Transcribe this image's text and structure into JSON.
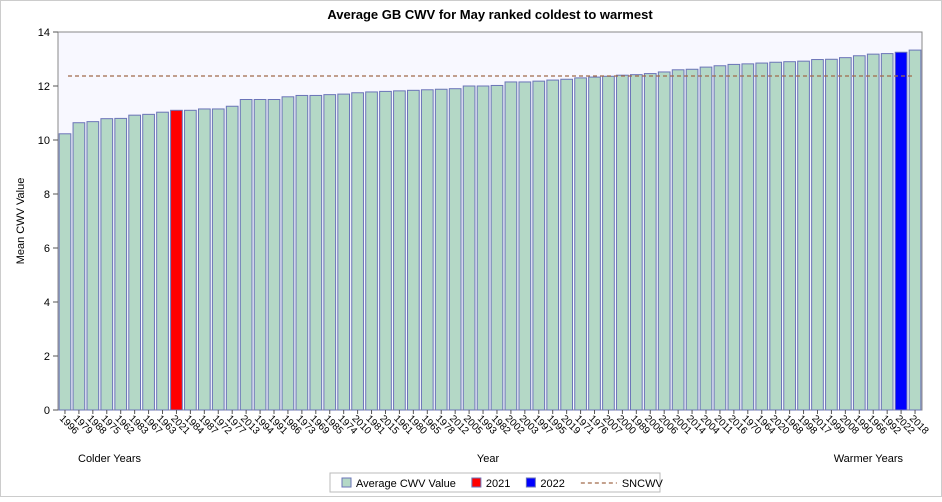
{
  "chart_data": {
    "type": "bar",
    "title": "Average GB CWV for May ranked coldest to warmest",
    "y_label": "Mean CWV Value",
    "x_label": "Year",
    "x_left_note": "Colder Years",
    "x_right_note": "Warmer Years",
    "categories": [
      "1996",
      "1979",
      "1988",
      "1975",
      "1962",
      "1983",
      "1967",
      "1963",
      "2021",
      "1984",
      "1987",
      "1972",
      "1977",
      "2013",
      "1994",
      "1991",
      "1986",
      "1973",
      "1969",
      "1985",
      "1974",
      "2010",
      "1981",
      "2015",
      "1961",
      "1980",
      "1965",
      "1978",
      "2012",
      "2005",
      "1993",
      "1982",
      "2002",
      "2003",
      "1997",
      "1995",
      "2019",
      "1971",
      "1976",
      "2007",
      "2000",
      "1989",
      "2009",
      "2006",
      "2001",
      "2014",
      "2004",
      "2011",
      "2016",
      "1970",
      "1964",
      "2020",
      "1968",
      "1998",
      "2017",
      "1999",
      "2008",
      "1990",
      "1966",
      "1992",
      "2022",
      "2018"
    ],
    "values": [
      10.23,
      10.64,
      10.68,
      10.79,
      10.8,
      10.92,
      10.95,
      11.03,
      11.1,
      11.1,
      11.15,
      11.15,
      11.25,
      11.5,
      11.5,
      11.5,
      11.6,
      11.65,
      11.65,
      11.68,
      11.7,
      11.75,
      11.78,
      11.8,
      11.82,
      11.84,
      11.86,
      11.88,
      11.9,
      12.0,
      12.0,
      12.02,
      12.15,
      12.15,
      12.18,
      12.22,
      12.25,
      12.3,
      12.33,
      12.36,
      12.4,
      12.42,
      12.46,
      12.52,
      12.6,
      12.62,
      12.7,
      12.75,
      12.8,
      12.82,
      12.85,
      12.88,
      12.9,
      12.92,
      12.98,
      12.99,
      13.05,
      13.12,
      13.18,
      13.2,
      13.25,
      13.33
    ],
    "legend": [
      {
        "name": "Average CWV Value",
        "color": "#b4d8c6"
      },
      {
        "name": "2021",
        "color": "#ff0000"
      },
      {
        "name": "2022",
        "color": "#0000ff"
      }
    ],
    "reference_line": {
      "name": "SNCWV",
      "value": 12.37,
      "color": "#a06a4a"
    },
    "ylim": [
      0,
      14
    ],
    "yticks": [
      0,
      2,
      4,
      6,
      8,
      10,
      12,
      14
    ]
  }
}
